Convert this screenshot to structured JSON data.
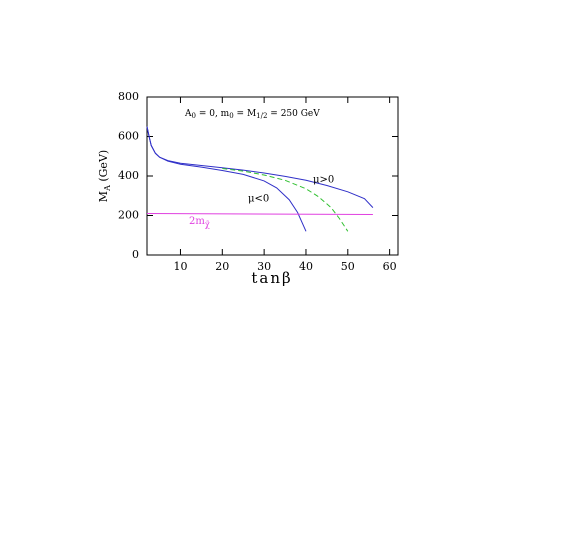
{
  "chart_data": {
    "type": "line",
    "title": {
      "a": "A",
      "a_sub": "0",
      "mid": " = 0,  m",
      "m_sub": "0",
      "eq": " = M",
      "M_sub": "1/2",
      "rest": " = 250 GeV"
    },
    "xlabel": "tanβ",
    "ylabel": {
      "main": "M",
      "sub": "A",
      "rest": " (GeV)"
    },
    "xlim": [
      2,
      62
    ],
    "ylim": [
      0,
      800
    ],
    "xticks": [
      10,
      20,
      30,
      40,
      50,
      60
    ],
    "yticks": [
      0,
      200,
      400,
      600,
      800
    ],
    "series": [
      {
        "name": "μ>0",
        "color": "#3030c8",
        "dash": false,
        "x": [
          2,
          2.5,
          3,
          4,
          5,
          7,
          10,
          15,
          20,
          25,
          30,
          35,
          40,
          45,
          50,
          54,
          56
        ],
        "values": [
          650,
          600,
          555,
          515,
          495,
          478,
          465,
          453,
          442,
          430,
          415,
          398,
          378,
          352,
          320,
          285,
          240
        ]
      },
      {
        "name": "μ<0",
        "color": "#3030c8",
        "dash": false,
        "x": [
          2,
          2.5,
          3,
          4,
          5,
          7,
          10,
          15,
          20,
          25,
          30,
          33,
          36,
          38,
          40
        ],
        "values": [
          650,
          600,
          555,
          515,
          495,
          475,
          460,
          445,
          428,
          408,
          375,
          340,
          280,
          215,
          120
        ]
      },
      {
        "color": "#30c030",
        "dash": true,
        "x": [
          20,
          25,
          30,
          35,
          40,
          43,
          46,
          48,
          50
        ],
        "values": [
          438,
          425,
          405,
          378,
          335,
          295,
          240,
          185,
          120
        ]
      },
      {
        "color": "#e040e0",
        "dash": false,
        "x": [
          2,
          56
        ],
        "values": [
          210,
          205
        ]
      }
    ],
    "chi_label": {
      "main": "2m",
      "sub": "χ̃"
    }
  }
}
